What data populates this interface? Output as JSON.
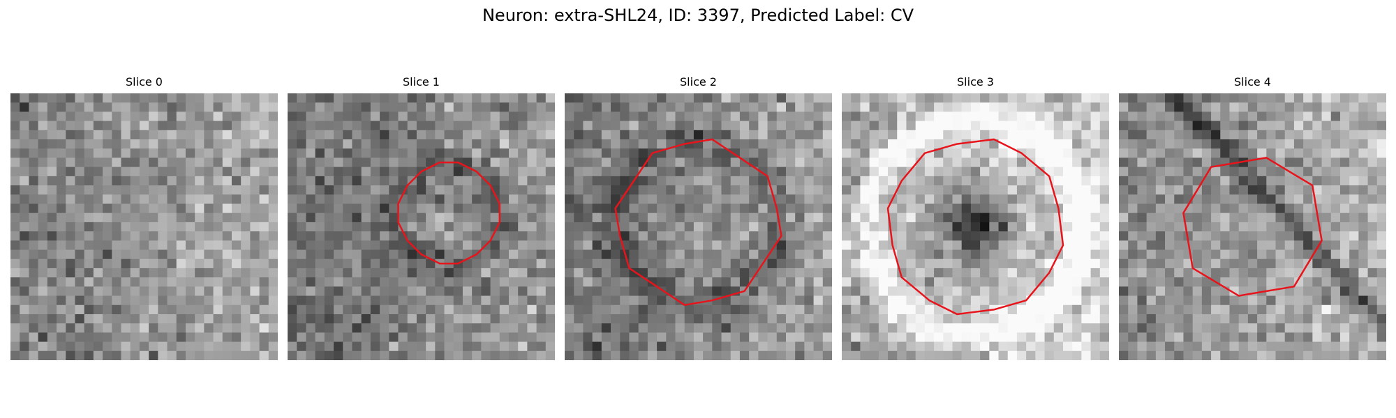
{
  "figure": {
    "title": "Neuron: extra-SHL24, ID: 3397, Predicted Label: CV"
  },
  "panels": [
    {
      "title": "Slice 0",
      "contour": false,
      "seed": 11,
      "bias": 0.0,
      "radius": 0.0,
      "ring": "none"
    },
    {
      "title": "Slice 1",
      "contour": true,
      "seed": 23,
      "bias": -0.05,
      "radius": 0.19,
      "ring": "dark"
    },
    {
      "title": "Slice 2",
      "contour": true,
      "seed": 37,
      "bias": -0.03,
      "radius": 0.3,
      "ring": "dark"
    },
    {
      "title": "Slice 3",
      "contour": true,
      "seed": 51,
      "bias": 0.15,
      "radius": 0.33,
      "ring": "bright"
    },
    {
      "title": "Slice 4",
      "contour": true,
      "seed": 67,
      "bias": 0.05,
      "radius": 0.26,
      "ring": "streak"
    }
  ],
  "colors": {
    "contour": "#e8141c"
  }
}
